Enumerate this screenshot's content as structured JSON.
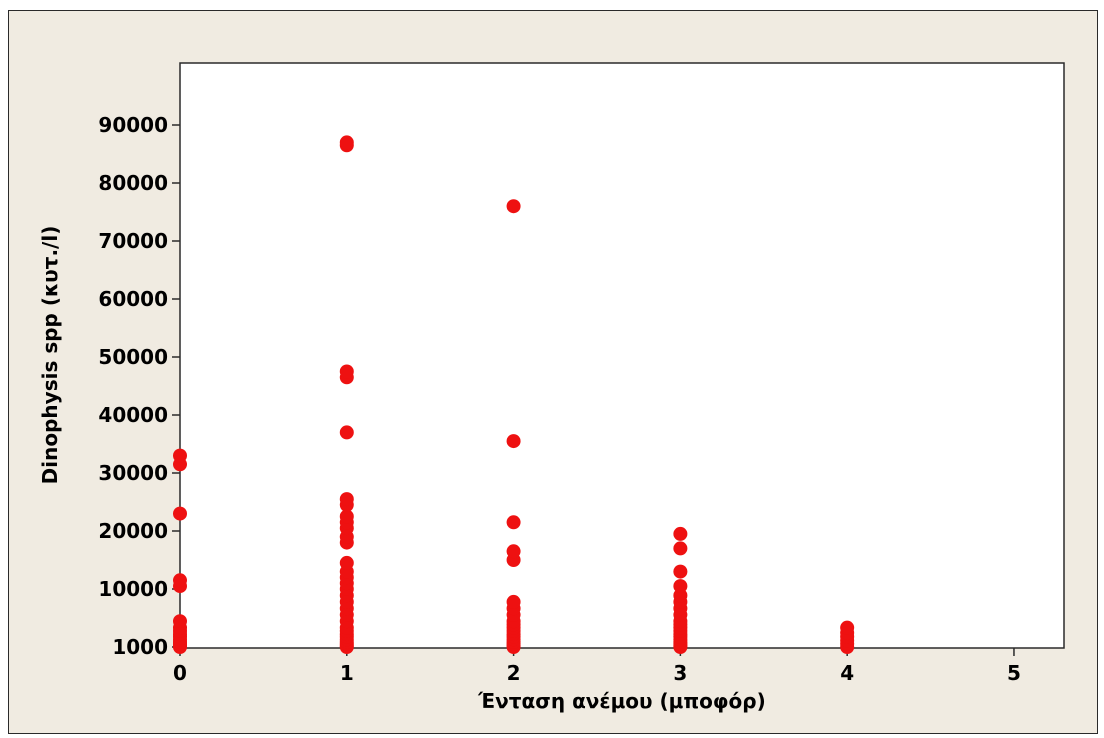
{
  "chart_data": {
    "type": "scatter",
    "title": "",
    "xlabel": "Ένταση ανέμου (μποφόρ)",
    "ylabel": "Dinophysis spp (κυτ./l)",
    "xlim": [
      0,
      5.3
    ],
    "ylim": [
      1000,
      100500
    ],
    "x_ticks": [
      0,
      1,
      2,
      3,
      4,
      5
    ],
    "y_ticks": [
      1000,
      10000,
      20000,
      30000,
      40000,
      50000,
      60000,
      70000,
      80000,
      90000
    ],
    "y_scale": "quantile-like (ticks evenly spaced; 1000 at bottom)",
    "grid": false,
    "legend": "none",
    "series": [
      {
        "color": "#ee1111",
        "points": [
          [
            0,
            1000
          ],
          [
            0,
            1200
          ],
          [
            0,
            1500
          ],
          [
            0,
            1800
          ],
          [
            0,
            2200
          ],
          [
            0,
            2600
          ],
          [
            0,
            3000
          ],
          [
            0,
            3500
          ],
          [
            0,
            4000
          ],
          [
            0,
            5000
          ],
          [
            0,
            10500
          ],
          [
            0,
            11500
          ],
          [
            0,
            23000
          ],
          [
            0,
            31500
          ],
          [
            0,
            33000
          ],
          [
            1,
            1000
          ],
          [
            1,
            1200
          ],
          [
            1,
            1500
          ],
          [
            1,
            1800
          ],
          [
            1,
            2200
          ],
          [
            1,
            2600
          ],
          [
            1,
            3000
          ],
          [
            1,
            3500
          ],
          [
            1,
            4000
          ],
          [
            1,
            5000
          ],
          [
            1,
            6000
          ],
          [
            1,
            7000
          ],
          [
            1,
            8000
          ],
          [
            1,
            9000
          ],
          [
            1,
            10000
          ],
          [
            1,
            11000
          ],
          [
            1,
            12000
          ],
          [
            1,
            13000
          ],
          [
            1,
            14500
          ],
          [
            1,
            18000
          ],
          [
            1,
            19000
          ],
          [
            1,
            20500
          ],
          [
            1,
            21500
          ],
          [
            1,
            22500
          ],
          [
            1,
            24500
          ],
          [
            1,
            25500
          ],
          [
            1,
            37000
          ],
          [
            1,
            46500
          ],
          [
            1,
            47500
          ],
          [
            1,
            86500
          ],
          [
            1,
            87000
          ],
          [
            2,
            1000
          ],
          [
            2,
            1200
          ],
          [
            2,
            1500
          ],
          [
            2,
            1800
          ],
          [
            2,
            2200
          ],
          [
            2,
            2600
          ],
          [
            2,
            3000
          ],
          [
            2,
            3500
          ],
          [
            2,
            4000
          ],
          [
            2,
            4500
          ],
          [
            2,
            5000
          ],
          [
            2,
            6000
          ],
          [
            2,
            7000
          ],
          [
            2,
            8000
          ],
          [
            2,
            15000
          ],
          [
            2,
            16500
          ],
          [
            2,
            21500
          ],
          [
            2,
            35500
          ],
          [
            2,
            76000
          ],
          [
            3,
            1000
          ],
          [
            3,
            1200
          ],
          [
            3,
            1500
          ],
          [
            3,
            1800
          ],
          [
            3,
            2200
          ],
          [
            3,
            2600
          ],
          [
            3,
            3000
          ],
          [
            3,
            3500
          ],
          [
            3,
            4000
          ],
          [
            3,
            4500
          ],
          [
            3,
            5000
          ],
          [
            3,
            6000
          ],
          [
            3,
            7000
          ],
          [
            3,
            8000
          ],
          [
            3,
            9000
          ],
          [
            3,
            10500
          ],
          [
            3,
            13000
          ],
          [
            3,
            17000
          ],
          [
            3,
            19500
          ],
          [
            4,
            1000
          ],
          [
            4,
            1500
          ],
          [
            4,
            2000
          ],
          [
            4,
            2600
          ],
          [
            4,
            3200
          ],
          [
            4,
            4000
          ]
        ]
      }
    ]
  }
}
